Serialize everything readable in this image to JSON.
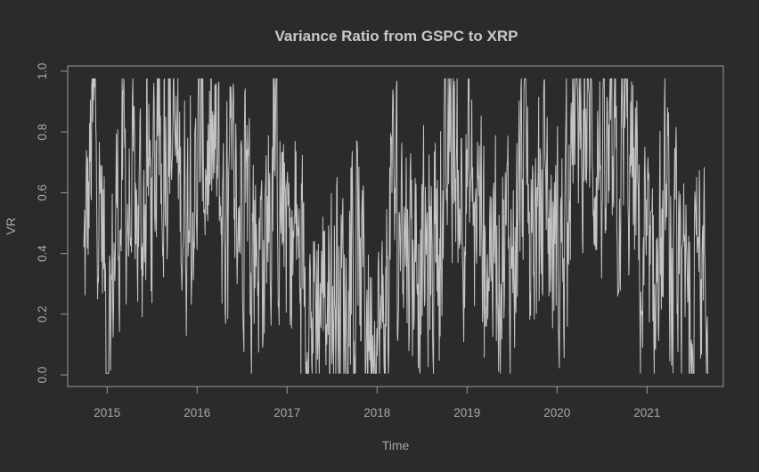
{
  "chart_data": {
    "type": "line",
    "title": "Variance Ratio from GSPC to XRP",
    "xlabel": "Time",
    "ylabel": "VR",
    "xlim": [
      2014.55,
      2022.0
    ],
    "ylim": [
      -0.04,
      1.02
    ],
    "x_ticks": [
      2015,
      2016,
      2017,
      2018,
      2019,
      2020,
      2021
    ],
    "x_tick_labels": [
      "2015",
      "2016",
      "2017",
      "2018",
      "2019",
      "2020",
      "2021"
    ],
    "y_ticks": [
      0.0,
      0.2,
      0.4,
      0.6,
      0.8,
      1.0
    ],
    "y_tick_labels": [
      "0.0",
      "0.2",
      "0.4",
      "0.6",
      "0.8",
      "1.0"
    ],
    "grid": false,
    "colors": {
      "background": "#2b2b2b",
      "line": "#c4c4c4",
      "axis": "#9a9a9a",
      "title": "#c8c8c8",
      "label": "#a8a8a8"
    },
    "x_range": [
      2014.74,
      2021.68
    ],
    "envelope": [
      [
        2014.74,
        0.32
      ],
      [
        2014.82,
        0.72
      ],
      [
        2014.88,
        0.82
      ],
      [
        2014.95,
        0.45
      ],
      [
        2015.0,
        0.05
      ],
      [
        2015.1,
        0.55
      ],
      [
        2015.2,
        0.62
      ],
      [
        2015.3,
        0.48
      ],
      [
        2015.4,
        0.55
      ],
      [
        2015.55,
        0.62
      ],
      [
        2015.68,
        0.88
      ],
      [
        2015.8,
        0.62
      ],
      [
        2015.9,
        0.58
      ],
      [
        2016.05,
        0.78
      ],
      [
        2016.15,
        0.72
      ],
      [
        2016.3,
        0.5
      ],
      [
        2016.45,
        0.55
      ],
      [
        2016.52,
        0.72
      ],
      [
        2016.62,
        0.48
      ],
      [
        2016.75,
        0.42
      ],
      [
        2016.85,
        0.7
      ],
      [
        2016.95,
        0.5
      ],
      [
        2017.1,
        0.38
      ],
      [
        2017.25,
        0.22
      ],
      [
        2017.4,
        0.3
      ],
      [
        2017.55,
        0.25
      ],
      [
        2017.7,
        0.28
      ],
      [
        2017.85,
        0.3
      ],
      [
        2017.95,
        0.12
      ],
      [
        2018.05,
        0.08
      ],
      [
        2018.15,
        0.6
      ],
      [
        2018.25,
        0.55
      ],
      [
        2018.4,
        0.42
      ],
      [
        2018.55,
        0.35
      ],
      [
        2018.7,
        0.45
      ],
      [
        2018.82,
        0.78
      ],
      [
        2018.92,
        0.72
      ],
      [
        2019.05,
        0.6
      ],
      [
        2019.2,
        0.48
      ],
      [
        2019.35,
        0.45
      ],
      [
        2019.5,
        0.4
      ],
      [
        2019.62,
        0.75
      ],
      [
        2019.75,
        0.48
      ],
      [
        2019.9,
        0.52
      ],
      [
        2020.0,
        0.35
      ],
      [
        2020.1,
        0.55
      ],
      [
        2020.2,
        0.92
      ],
      [
        2020.35,
        0.85
      ],
      [
        2020.48,
        0.7
      ],
      [
        2020.6,
        0.55
      ],
      [
        2020.75,
        0.75
      ],
      [
        2020.88,
        0.55
      ],
      [
        2020.95,
        0.25
      ],
      [
        2021.1,
        0.3
      ],
      [
        2021.2,
        0.55
      ],
      [
        2021.3,
        0.25
      ],
      [
        2021.45,
        0.22
      ],
      [
        2021.55,
        0.45
      ],
      [
        2021.68,
        0.22
      ]
    ]
  }
}
